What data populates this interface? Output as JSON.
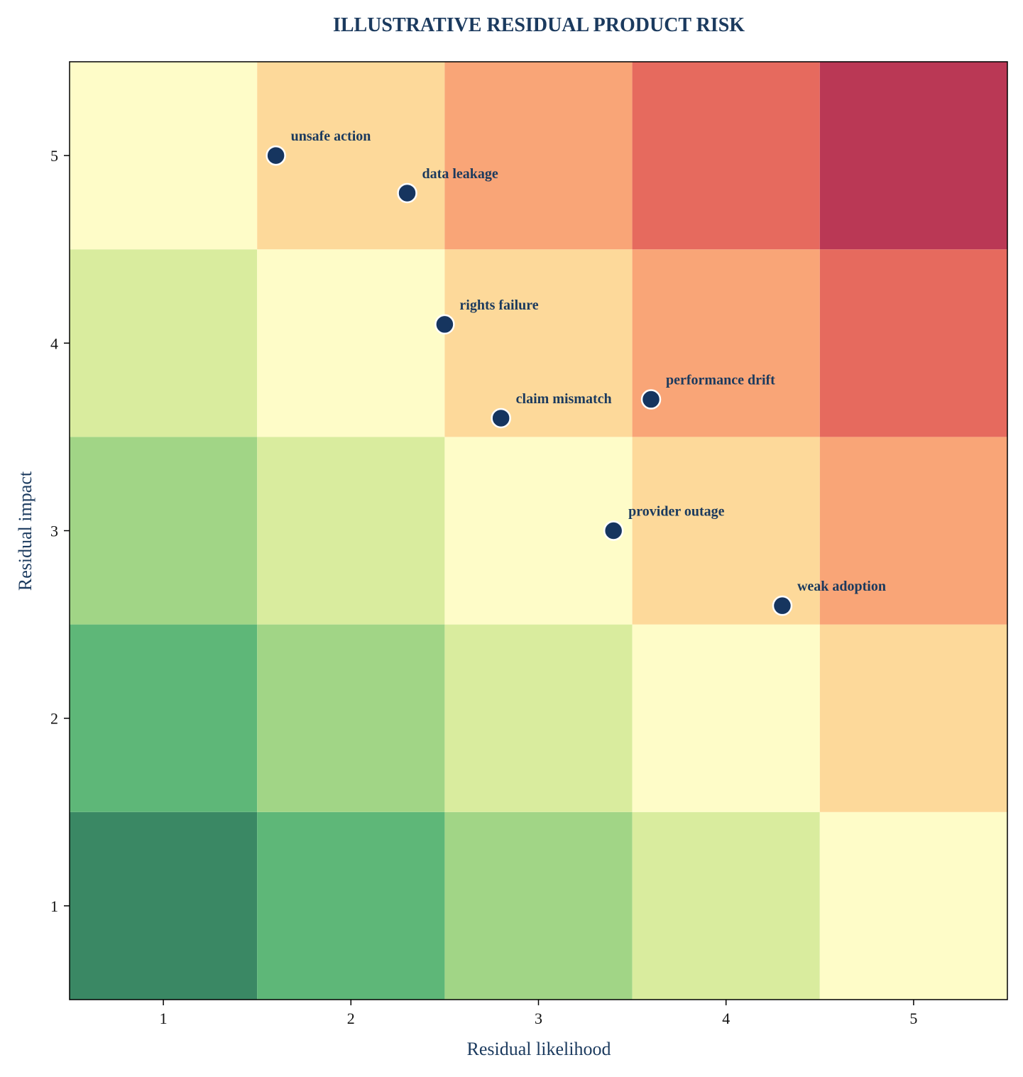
{
  "chart_data": {
    "type": "scatter",
    "title": "ILLUSTRATIVE RESIDUAL PRODUCT RISK",
    "xlabel": "Residual likelihood",
    "ylabel": "Residual impact",
    "xlim": [
      0.5,
      5.5
    ],
    "ylim": [
      0.5,
      5.5
    ],
    "xticks": [
      1,
      2,
      3,
      4,
      5
    ],
    "yticks": [
      1,
      2,
      3,
      4,
      5
    ],
    "grid": false,
    "heatmap": {
      "colormap": "RdYlGn_r",
      "cell_scores_rows_impact_1_to_5": [
        [
          2,
          3,
          4,
          5,
          6
        ],
        [
          3,
          4,
          5,
          6,
          7
        ],
        [
          4,
          5,
          6,
          7,
          8
        ],
        [
          5,
          6,
          7,
          8,
          9
        ],
        [
          6,
          7,
          8,
          9,
          10
        ]
      ],
      "score_colors": {
        "2": "#3a8864",
        "3": "#5eb778",
        "4": "#a1d586",
        "5": "#d9ec9e",
        "6": "#fefcc8",
        "7": "#fdd99a",
        "8": "#f9a577",
        "9": "#e66a5e",
        "10": "#ba3855"
      }
    },
    "points": [
      {
        "label": "unsafe action",
        "x": 1.6,
        "y": 5.0
      },
      {
        "label": "data leakage",
        "x": 2.3,
        "y": 4.8
      },
      {
        "label": "rights failure",
        "x": 2.5,
        "y": 4.1
      },
      {
        "label": "claim mismatch",
        "x": 2.8,
        "y": 3.6
      },
      {
        "label": "performance drift",
        "x": 3.6,
        "y": 3.7
      },
      {
        "label": "provider outage",
        "x": 3.4,
        "y": 3.0
      },
      {
        "label": "weak adoption",
        "x": 4.3,
        "y": 2.6
      }
    ],
    "marker_color": "#16355f",
    "marker_edge_color": "#ffffff"
  }
}
